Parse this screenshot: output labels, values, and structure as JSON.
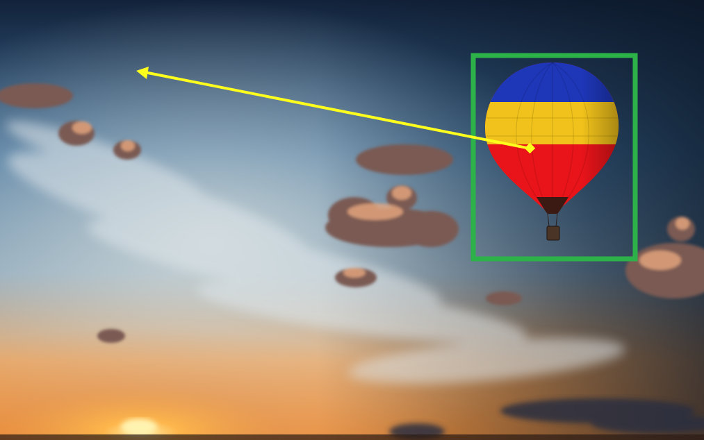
{
  "scene": {
    "subject": "hot-air-balloon",
    "sky_colors": {
      "top": "#12223a",
      "mid_blue": "#3f6f99",
      "haze": "#b9c9d3",
      "glow": "#e8a05a",
      "horizon": "#f0903a",
      "sun": "#ffe27a"
    },
    "balloon_colors": {
      "crown": "#1e36b8",
      "band": "#f1c21b",
      "envelope": "#e8141a",
      "throat": "#3a1a12",
      "basket": "#4a3426"
    }
  },
  "annotation": {
    "box_color": "#2db24a",
    "arrow_color": "#ffff1e",
    "arrow_from": "balloon-center",
    "arrow_to": "empty-sky-upper-left"
  }
}
